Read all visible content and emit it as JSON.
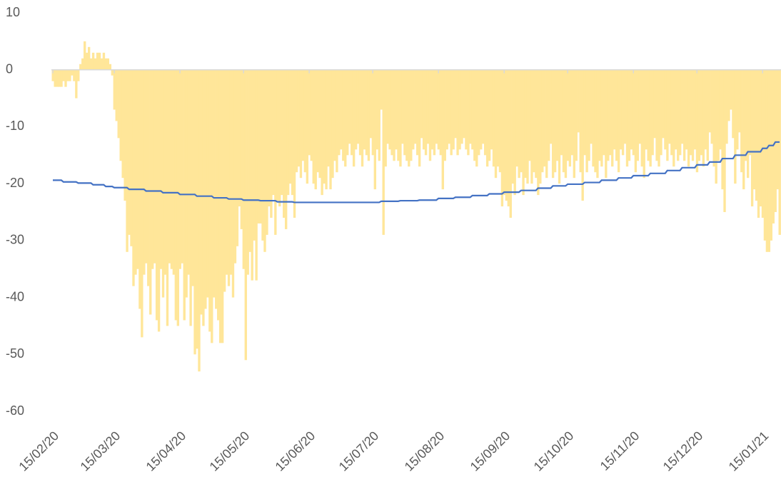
{
  "chart_data": {
    "type": "bar_line",
    "categories": [
      "15/02/20",
      null,
      null,
      null,
      null,
      null,
      null,
      null,
      null,
      null,
      null,
      null,
      null,
      null,
      null,
      null,
      null,
      null,
      null,
      null,
      null,
      null,
      null,
      null,
      null,
      null,
      null,
      null,
      null,
      "15/03/20",
      null,
      null,
      null,
      null,
      null,
      null,
      null,
      null,
      null,
      null,
      null,
      null,
      null,
      null,
      null,
      null,
      null,
      null,
      null,
      null,
      null,
      null,
      null,
      null,
      null,
      null,
      null,
      null,
      null,
      null,
      "15/04/20",
      null,
      null,
      null,
      null,
      null,
      null,
      null,
      null,
      null,
      null,
      null,
      null,
      null,
      null,
      null,
      null,
      null,
      null,
      null,
      null,
      null,
      null,
      null,
      null,
      null,
      null,
      null,
      null,
      null,
      "15/05/20",
      null,
      null,
      null,
      null,
      null,
      null,
      null,
      null,
      null,
      null,
      null,
      null,
      null,
      null,
      null,
      null,
      null,
      null,
      null,
      null,
      null,
      null,
      null,
      null,
      null,
      null,
      null,
      null,
      null,
      null,
      "15/06/20",
      null,
      null,
      null,
      null,
      null,
      null,
      null,
      null,
      null,
      null,
      null,
      null,
      null,
      null,
      null,
      null,
      null,
      null,
      null,
      null,
      null,
      null,
      null,
      null,
      null,
      null,
      null,
      null,
      null,
      "15/07/20",
      null,
      null,
      null,
      null,
      null,
      null,
      null,
      null,
      null,
      null,
      null,
      null,
      null,
      null,
      null,
      null,
      null,
      null,
      null,
      null,
      null,
      null,
      null,
      null,
      null,
      null,
      null,
      null,
      null,
      null,
      "15/08/20",
      null,
      null,
      null,
      null,
      null,
      null,
      null,
      null,
      null,
      null,
      null,
      null,
      null,
      null,
      null,
      null,
      null,
      null,
      null,
      null,
      null,
      null,
      null,
      null,
      null,
      null,
      null,
      null,
      null,
      null,
      "15/09/20",
      null,
      null,
      null,
      null,
      null,
      null,
      null,
      null,
      null,
      null,
      null,
      null,
      null,
      null,
      null,
      null,
      null,
      null,
      null,
      null,
      null,
      null,
      null,
      null,
      null,
      null,
      null,
      null,
      null,
      "15/10/20",
      null,
      null,
      null,
      null,
      null,
      null,
      null,
      null,
      null,
      null,
      null,
      null,
      null,
      null,
      null,
      null,
      null,
      null,
      null,
      null,
      null,
      null,
      null,
      null,
      null,
      null,
      null,
      null,
      null,
      null,
      "15/11/20",
      null,
      null,
      null,
      null,
      null,
      null,
      null,
      null,
      null,
      null,
      null,
      null,
      null,
      null,
      null,
      null,
      null,
      null,
      null,
      null,
      null,
      null,
      null,
      null,
      null,
      null,
      null,
      null,
      null,
      "15/12/20",
      null,
      null,
      null,
      null,
      null,
      null,
      null,
      null,
      null,
      null,
      null,
      null,
      null,
      null,
      null,
      null,
      null,
      null,
      null,
      null,
      null,
      null,
      null,
      null,
      null,
      null,
      null,
      null,
      null,
      null,
      "15/01/21",
      null,
      null,
      null,
      null,
      null,
      null,
      null,
      null
    ],
    "series": [
      {
        "type": "bar",
        "color": "#ffe699",
        "values": [
          -2,
          -3,
          -3,
          -3,
          -3,
          -2,
          -3,
          -2,
          -2,
          -1,
          -2,
          -5,
          -2,
          1,
          2,
          5,
          3,
          4,
          2,
          3,
          2,
          3,
          3,
          2,
          3,
          2,
          2,
          1,
          -1,
          -7,
          -9,
          -12,
          -16,
          -19,
          -23,
          -32,
          -29,
          -31,
          -38,
          -36,
          -35,
          -42,
          -47,
          -36,
          -34,
          -38,
          -43,
          -35,
          -34,
          -44,
          -46,
          -35,
          -40,
          -36,
          -45,
          -34,
          -35,
          -36,
          -44,
          -45,
          -35,
          -34,
          -44,
          -40,
          -36,
          -45,
          -38,
          -50,
          -49,
          -53,
          -43,
          -45,
          -42,
          -40,
          -46,
          -48,
          -40,
          -42,
          -44,
          -48,
          -48,
          -39,
          -36,
          -38,
          -36,
          -40,
          -34,
          -31,
          -24,
          -28,
          -35,
          -51,
          -36,
          -32,
          -37,
          -30,
          -37,
          -27,
          -27,
          -30,
          -32,
          -29,
          -24,
          -26,
          -22,
          -29,
          -23,
          -24,
          -22,
          -26,
          -28,
          -22,
          -20,
          -22,
          -26,
          -18,
          -17,
          -19,
          -16,
          -18,
          -20,
          -15,
          -16,
          -20,
          -21,
          -18,
          -19,
          -22,
          -20,
          -21,
          -17,
          -21,
          -19,
          -16,
          -18,
          -15,
          -14,
          -16,
          -17,
          -15,
          -13,
          -15,
          -17,
          -14,
          -13,
          -15,
          -17,
          -14,
          -15,
          -16,
          -12,
          -15,
          -21,
          -14,
          -16,
          -7,
          -29,
          -17,
          -13,
          -14,
          -15,
          -16,
          -14,
          -16,
          -17,
          -13,
          -15,
          -16,
          -17,
          -16,
          -14,
          -13,
          -15,
          -17,
          -12,
          -14,
          -15,
          -13,
          -16,
          -14,
          -15,
          -13,
          -14,
          -15,
          -21,
          -16,
          -14,
          -13,
          -15,
          -14,
          -12,
          -15,
          -14,
          -13,
          -12,
          -14,
          -15,
          -13,
          -14,
          -16,
          -17,
          -15,
          -14,
          -13,
          -15,
          -17,
          -16,
          -14,
          -17,
          -19,
          -17,
          -18,
          -24,
          -22,
          -23,
          -24,
          -26,
          -20,
          -22,
          -17,
          -19,
          -18,
          -22,
          -19,
          -20,
          -16,
          -20,
          -18,
          -19,
          -22,
          -20,
          -18,
          -17,
          -19,
          -16,
          -13,
          -19,
          -18,
          -16,
          -20,
          -15,
          -18,
          -19,
          -16,
          -17,
          -15,
          -19,
          -16,
          -11,
          -18,
          -23,
          -15,
          -18,
          -16,
          -13,
          -17,
          -18,
          -19,
          -16,
          -17,
          -15,
          -19,
          -16,
          -15,
          -17,
          -14,
          -16,
          -18,
          -14,
          -15,
          -13,
          -17,
          -16,
          -14,
          -15,
          -18,
          -16,
          -13,
          -17,
          -19,
          -14,
          -16,
          -17,
          -15,
          -12,
          -16,
          -17,
          -15,
          -12,
          -14,
          -16,
          -13,
          -15,
          -17,
          -14,
          -16,
          -15,
          -13,
          -16,
          -14,
          -17,
          -15,
          -16,
          -14,
          -18,
          -16,
          -15,
          -17,
          -14,
          -16,
          -11,
          -13,
          -17,
          -20,
          -16,
          -14,
          -21,
          -25,
          -13,
          -9,
          -7,
          -12,
          -20,
          -14,
          -11,
          -18,
          -21,
          -16,
          -19,
          -15,
          -24,
          -21,
          -23,
          -26,
          -24,
          -26,
          -30,
          -32,
          -32,
          -30,
          -27,
          -25,
          -21,
          -29
        ]
      },
      {
        "type": "line",
        "color": "#4472c4",
        "values": [
          -19.4,
          -19.4,
          -19.4,
          -19.4,
          -19.4,
          -19.7,
          -19.7,
          -19.7,
          -19.7,
          -19.7,
          -19.7,
          -19.7,
          -19.9,
          -19.9,
          -19.9,
          -19.9,
          -19.9,
          -19.9,
          -19.9,
          -20.2,
          -20.2,
          -20.2,
          -20.2,
          -20.2,
          -20.2,
          -20.5,
          -20.5,
          -20.5,
          -20.5,
          -20.7,
          -20.7,
          -20.7,
          -20.7,
          -20.7,
          -20.7,
          -20.7,
          -21.0,
          -21.0,
          -21.0,
          -21.0,
          -21.0,
          -21.0,
          -21.0,
          -21.0,
          -21.3,
          -21.3,
          -21.3,
          -21.3,
          -21.3,
          -21.3,
          -21.3,
          -21.3,
          -21.6,
          -21.6,
          -21.6,
          -21.6,
          -21.6,
          -21.6,
          -21.6,
          -21.6,
          -21.9,
          -21.9,
          -21.9,
          -21.9,
          -21.9,
          -21.9,
          -21.9,
          -21.9,
          -22.2,
          -22.2,
          -22.2,
          -22.2,
          -22.2,
          -22.2,
          -22.2,
          -22.2,
          -22.5,
          -22.5,
          -22.5,
          -22.5,
          -22.5,
          -22.5,
          -22.5,
          -22.7,
          -22.7,
          -22.7,
          -22.7,
          -22.7,
          -22.7,
          -22.7,
          -22.9,
          -22.9,
          -22.9,
          -22.9,
          -22.9,
          -22.9,
          -22.9,
          -22.9,
          -23.0,
          -23.0,
          -23.0,
          -23.0,
          -23.0,
          -23.0,
          -23.0,
          -23.0,
          -23.2,
          -23.2,
          -23.2,
          -23.2,
          -23.2,
          -23.2,
          -23.2,
          -23.2,
          -23.3,
          -23.3,
          -23.3,
          -23.3,
          -23.3,
          -23.3,
          -23.3,
          -23.3,
          -23.3,
          -23.3,
          -23.3,
          -23.3,
          -23.3,
          -23.3,
          -23.3,
          -23.3,
          -23.3,
          -23.3,
          -23.3,
          -23.3,
          -23.3,
          -23.3,
          -23.3,
          -23.3,
          -23.3,
          -23.3,
          -23.3,
          -23.3,
          -23.3,
          -23.3,
          -23.3,
          -23.3,
          -23.3,
          -23.3,
          -23.3,
          -23.3,
          -23.3,
          -23.3,
          -23.3,
          -23.3,
          -23.3,
          -23.1,
          -23.1,
          -23.1,
          -23.1,
          -23.1,
          -23.1,
          -23.1,
          -23.1,
          -23.1,
          -23.0,
          -23.0,
          -23.0,
          -23.0,
          -23.0,
          -23.0,
          -23.0,
          -23.0,
          -23.0,
          -22.9,
          -22.9,
          -22.9,
          -22.9,
          -22.9,
          -22.9,
          -22.9,
          -22.9,
          -22.9,
          -22.6,
          -22.6,
          -22.6,
          -22.6,
          -22.6,
          -22.6,
          -22.6,
          -22.6,
          -22.4,
          -22.4,
          -22.4,
          -22.4,
          -22.4,
          -22.4,
          -22.4,
          -22.4,
          -22.1,
          -22.1,
          -22.1,
          -22.1,
          -22.1,
          -22.1,
          -22.1,
          -22.1,
          -21.8,
          -21.8,
          -21.8,
          -21.8,
          -21.8,
          -21.8,
          -21.8,
          -21.5,
          -21.5,
          -21.5,
          -21.5,
          -21.5,
          -21.5,
          -21.5,
          -21.5,
          -21.2,
          -21.2,
          -21.2,
          -21.2,
          -21.2,
          -21.2,
          -21.2,
          -21.2,
          -20.8,
          -20.8,
          -20.8,
          -20.8,
          -20.8,
          -20.8,
          -20.8,
          -20.4,
          -20.4,
          -20.4,
          -20.4,
          -20.4,
          -20.4,
          -20.4,
          -20.1,
          -20.1,
          -20.1,
          -20.1,
          -20.1,
          -20.1,
          -20.1,
          -20.1,
          -19.8,
          -19.8,
          -19.8,
          -19.8,
          -19.8,
          -19.8,
          -19.8,
          -19.8,
          -19.4,
          -19.4,
          -19.4,
          -19.4,
          -19.4,
          -19.4,
          -19.4,
          -19.4,
          -19.0,
          -19.0,
          -19.0,
          -19.0,
          -19.0,
          -19.0,
          -19.0,
          -18.6,
          -18.6,
          -18.6,
          -18.6,
          -18.6,
          -18.6,
          -18.6,
          -18.6,
          -18.2,
          -18.2,
          -18.2,
          -18.2,
          -18.2,
          -18.2,
          -18.2,
          -18.2,
          -17.7,
          -17.7,
          -17.7,
          -17.7,
          -17.7,
          -17.7,
          -17.7,
          -17.2,
          -17.2,
          -17.2,
          -17.2,
          -17.2,
          -17.2,
          -17.2,
          -16.7,
          -16.7,
          -16.7,
          -16.7,
          -16.7,
          -16.7,
          -16.2,
          -16.2,
          -16.2,
          -16.2,
          -16.2,
          -16.2,
          -15.6,
          -15.6,
          -15.6,
          -15.6,
          -15.6,
          -15.6,
          -15.0,
          -15.0,
          -15.0,
          -15.0,
          -15.0,
          -15.0,
          -14.4,
          -14.4,
          -14.4,
          -14.4,
          -14.4,
          -14.4,
          -14.4,
          -13.8,
          -13.8,
          -13.8,
          -13.3,
          -13.3,
          -13.3,
          -12.7,
          -12.7,
          -12.7
        ]
      }
    ],
    "ylim": [
      -60,
      10
    ],
    "yticks": [
      10,
      0,
      -10,
      -20,
      -30,
      -40,
      -50,
      -60
    ]
  }
}
